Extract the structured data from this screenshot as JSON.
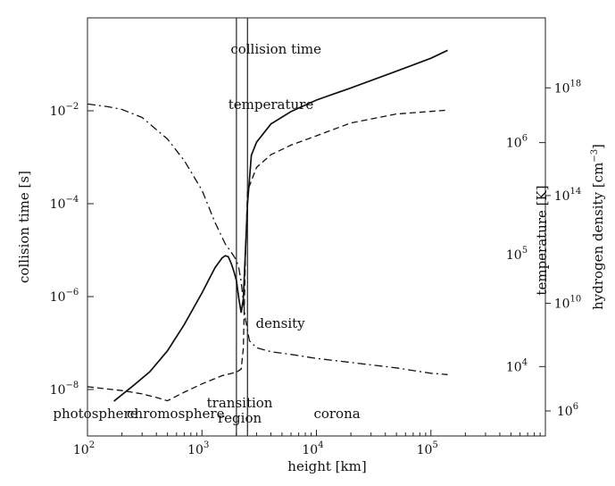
{
  "chart_data": {
    "type": "line",
    "xscale": "log",
    "xlim": [
      100,
      1000000
    ],
    "xlabel": "height [km]",
    "x_ticks": [
      {
        "value": 100,
        "base": "10",
        "exp": "2"
      },
      {
        "value": 1000,
        "base": "10",
        "exp": "3"
      },
      {
        "value": 10000,
        "base": "10",
        "exp": "4"
      },
      {
        "value": 100000,
        "base": "10",
        "exp": "5"
      }
    ],
    "y_left": {
      "label": "collision time [s]",
      "scale": "log",
      "lim": [
        1e-09,
        1
      ],
      "ticks": [
        {
          "value": 1e-08,
          "base": "10",
          "exp": "−8"
        },
        {
          "value": 1e-06,
          "base": "10",
          "exp": "−6"
        },
        {
          "value": 0.0001,
          "base": "10",
          "exp": "−4"
        },
        {
          "value": 0.01,
          "base": "10",
          "exp": "−2"
        }
      ]
    },
    "y_right_temperature": {
      "label": "temperature [K]",
      "scale": "log",
      "lim": [
        2400,
        13000000
      ],
      "ticks": [
        {
          "value": 10000,
          "base": "10",
          "exp": "4"
        },
        {
          "value": 100000,
          "base": "10",
          "exp": "5"
        },
        {
          "value": 1000000,
          "base": "10",
          "exp": "6"
        }
      ]
    },
    "y_right_density": {
      "label": "hydrogen density [cm",
      "label_exp": "−3",
      "label_tail": "]",
      "scale": "log",
      "lim_log10": [
        5.07,
        20.6
      ],
      "ticks": [
        {
          "log10": 6,
          "base": "10",
          "exp": "6"
        },
        {
          "log10": 10,
          "base": "10",
          "exp": "10"
        },
        {
          "log10": 14,
          "base": "10",
          "exp": "14"
        },
        {
          "log10": 18,
          "base": "10",
          "exp": "18"
        }
      ]
    },
    "transition_region_bounds": [
      2000,
      2500
    ],
    "series": [
      {
        "name": "collision time",
        "style": "solid",
        "axis": "left",
        "x": [
          170,
          250,
          350,
          500,
          700,
          1000,
          1300,
          1500,
          1600,
          1700,
          1800,
          1900,
          2000,
          2100,
          2200,
          2300,
          2350,
          2400,
          2500,
          2700,
          3000,
          4000,
          6000,
          10000,
          20000,
          50000,
          100000,
          140000
        ],
        "y": [
          5.6e-09,
          1.2e-08,
          2.4e-08,
          6.8e-08,
          2.5e-07,
          1.2e-06,
          4.2e-06,
          6.8e-06,
          7.6e-06,
          7.2e-06,
          5.2e-06,
          3.5e-06,
          2.2e-06,
          9e-07,
          4.5e-07,
          9e-07,
          3e-06,
          1e-05,
          0.0001,
          0.0011,
          0.0021,
          0.0052,
          0.0096,
          0.017,
          0.031,
          0.071,
          0.135,
          0.2
        ]
      },
      {
        "name": "temperature",
        "style": "dashed",
        "axis": "right_temperature",
        "x": [
          100,
          200,
          300,
          400,
          500,
          700,
          1000,
          1500,
          2000,
          2200,
          2300,
          2400,
          2500,
          3000,
          4000,
          6000,
          10000,
          20000,
          50000,
          100000,
          140000
        ],
        "y": [
          6600,
          6100,
          5700,
          5300,
          4950,
          5900,
          7000,
          8300,
          8900,
          9500,
          14500,
          100000,
          370000,
          600000,
          780000,
          950000,
          1150000,
          1500000,
          1800000,
          1900000,
          1950000
        ]
      },
      {
        "name": "density",
        "style": "dashdot",
        "axis": "right_density",
        "x": [
          100,
          150,
          200,
          300,
          500,
          700,
          1000,
          1300,
          1600,
          1800,
          2000,
          2100,
          2200,
          2400,
          2600,
          3000,
          4000,
          6000,
          10000,
          20000,
          50000,
          100000,
          140000
        ],
        "log10_y": [
          17.4,
          17.3,
          17.2,
          16.9,
          16.1,
          15.3,
          14.2,
          13.0,
          12.2,
          11.9,
          11.6,
          11.3,
          10.8,
          9.4,
          8.6,
          8.35,
          8.2,
          8.1,
          7.95,
          7.8,
          7.6,
          7.4,
          7.35
        ]
      }
    ],
    "annotations": [
      {
        "text": "collision time",
        "x": 3.25,
        "y": 55
      },
      {
        "text": "temperature",
        "x": 3.23,
        "y": 117
      },
      {
        "text": "density",
        "x": 3.47,
        "y": 362
      }
    ],
    "region_labels": [
      {
        "text": "photosphere",
        "x": 2.07
      },
      {
        "text": "chromosphere",
        "x": 2.77
      },
      {
        "text": "transition",
        "x": 3.33,
        "line": 1
      },
      {
        "text": "region",
        "x": 3.33,
        "line": 2
      },
      {
        "text": "corona",
        "x": 4.18
      }
    ]
  }
}
